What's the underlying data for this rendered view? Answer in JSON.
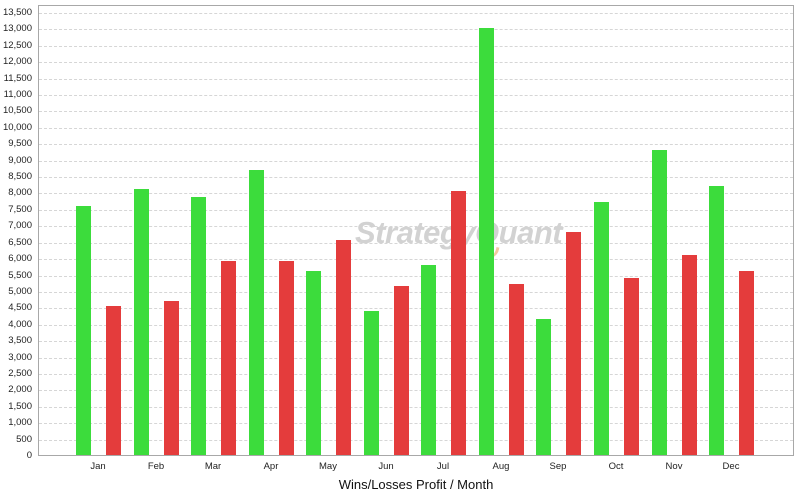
{
  "chart_data": {
    "type": "bar",
    "title": "Wins/Losses Profit / Month",
    "xlabel": "Wins/Losses Profit / Month",
    "ylabel": "",
    "categories": [
      "Jan",
      "Feb",
      "Mar",
      "Apr",
      "May",
      "Jun",
      "Jul",
      "Aug",
      "Sep",
      "Oct",
      "Nov",
      "Dec"
    ],
    "series": [
      {
        "name": "Wins",
        "color": "#3cdc3c",
        "values": [
          7600,
          8100,
          7850,
          8700,
          5600,
          4400,
          5800,
          13000,
          4150,
          7700,
          9300,
          8200
        ]
      },
      {
        "name": "Losses",
        "color": "#e43c3c",
        "values": [
          4550,
          4700,
          5900,
          5900,
          6550,
          5150,
          8050,
          5200,
          6800,
          5400,
          6100,
          5600
        ]
      }
    ],
    "ylim": [
      0,
      13500
    ],
    "y_tick_step": 500,
    "grid": true,
    "legend_position": "none"
  },
  "watermark": {
    "prefix": "Strategy",
    "q": "Q",
    "suffix": "uant",
    "text_color": "#d2d2d2",
    "accent_color": "#f3c9a0"
  },
  "frame": {
    "border_color": "#a8a8a8",
    "gridline_color": "#d6d6d6",
    "background": "#ffffff"
  }
}
